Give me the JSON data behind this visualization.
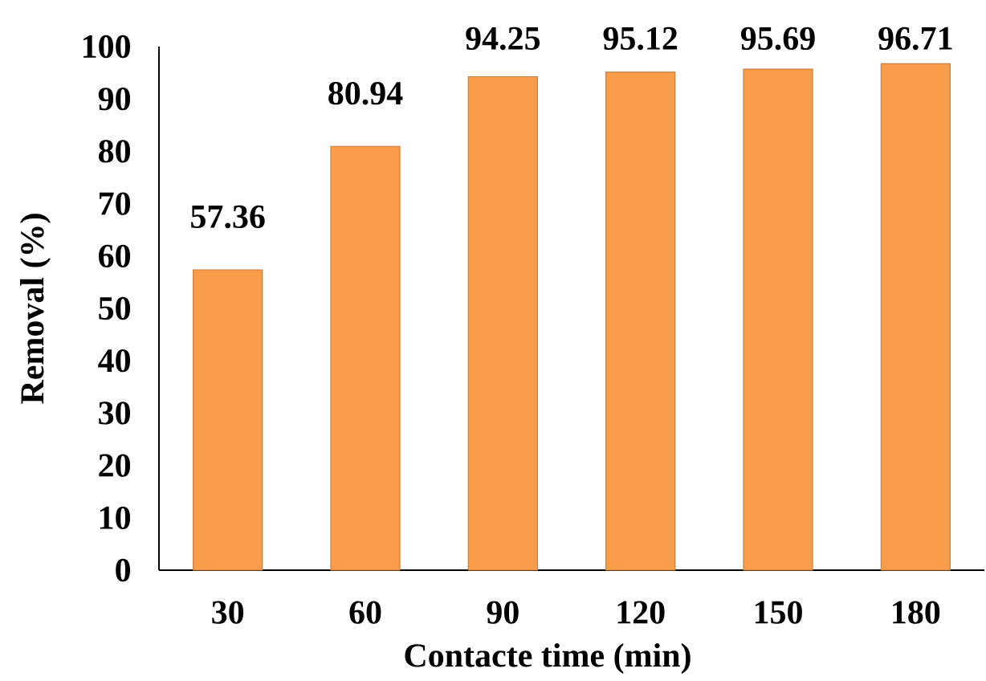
{
  "chart_data": {
    "type": "bar",
    "xlabel": "Contacte time (min)",
    "ylabel": "Removal (%)",
    "categories": [
      "30",
      "60",
      "90",
      "120",
      "150",
      "180"
    ],
    "values": [
      57.36,
      80.94,
      94.25,
      95.12,
      95.69,
      96.71
    ],
    "color": "#f99d4b",
    "data_labels": true,
    "ylim": [
      0,
      100
    ],
    "yticks": [
      0,
      10,
      20,
      30,
      40,
      50,
      60,
      70,
      80,
      90,
      100
    ]
  }
}
